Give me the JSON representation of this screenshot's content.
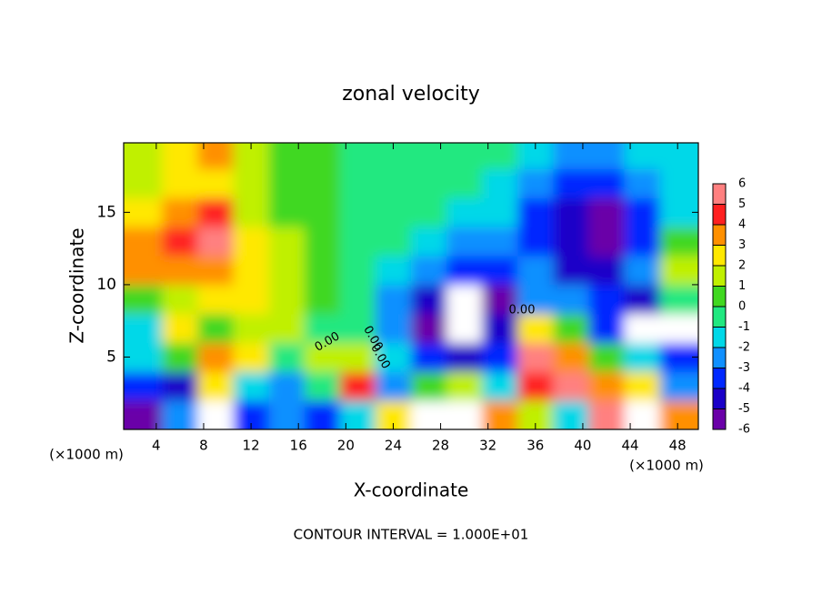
{
  "chart_data": {
    "type": "contour",
    "title": "zonal velocity",
    "x_label": "X-coordinate",
    "y_label": "Z-coordinate",
    "x_unit": "(×1000 m)",
    "y_unit": "(×1000 m)",
    "footnote": "CONTOUR INTERVAL = 1.000E+01",
    "annotations": [
      "0.00",
      "0.00",
      "0.00",
      "0.00"
    ],
    "xlim": [
      1.25,
      49.75
    ],
    "ylim": [
      0,
      19.8
    ],
    "xticks": [
      4,
      8,
      12,
      16,
      20,
      24,
      28,
      32,
      36,
      40,
      44,
      48
    ],
    "yticks": [
      5,
      10,
      15
    ],
    "x": [
      3,
      6,
      9,
      12,
      15,
      18,
      21,
      24,
      27,
      30,
      33,
      36,
      39,
      42,
      45,
      48
    ],
    "y": [
      1,
      3,
      5,
      7,
      9,
      11,
      13,
      15,
      17,
      19
    ],
    "z": [
      [
        -5,
        -2,
        -6.5,
        -3,
        -2,
        -3,
        -1,
        3,
        6.5,
        6.5,
        4,
        2,
        -1,
        6,
        6.5,
        4
      ],
      [
        -3,
        -4,
        3,
        -1,
        -2,
        0,
        5,
        -2,
        1,
        2,
        -1,
        5,
        6,
        4,
        3,
        -2
      ],
      [
        -1,
        1,
        4,
        3,
        0,
        2,
        2,
        -1,
        -3,
        -4,
        -3,
        6,
        4,
        1,
        -1,
        -3
      ],
      [
        -1,
        3,
        1,
        2,
        2,
        0,
        0,
        -2,
        -5,
        -6.5,
        -4,
        3,
        1,
        -3,
        -6.5,
        -6.5
      ],
      [
        1,
        2,
        3,
        3,
        2,
        0.5,
        -0.5,
        -2,
        -4,
        -6.5,
        -5,
        -2,
        -2,
        -3,
        -4,
        0
      ],
      [
        4,
        4,
        4,
        3,
        1.5,
        0.5,
        -0.5,
        -1,
        -2,
        -3,
        -3,
        -2,
        -4,
        -4,
        -2,
        2
      ],
      [
        4,
        4.5,
        5.5,
        3,
        1.5,
        0.5,
        0,
        -0.5,
        -1,
        -2,
        -2,
        -3,
        -4,
        -5.5,
        -3,
        1
      ],
      [
        3,
        4,
        5,
        2,
        1,
        0.5,
        0,
        0,
        -0.5,
        -1,
        -1.5,
        -3,
        -4,
        -5,
        -3,
        -1
      ],
      [
        2,
        3,
        2.5,
        2,
        1,
        0.5,
        0,
        0,
        0,
        -0.5,
        -1,
        -2,
        -3,
        -3,
        -2,
        -1
      ],
      [
        2,
        3,
        3.5,
        2,
        1,
        0.5,
        0,
        0,
        0,
        -0.3,
        -0.5,
        -1.5,
        -2,
        -2,
        -1.5,
        -1
      ]
    ],
    "levels": [
      -6,
      -5,
      -4,
      -3,
      -2,
      -1,
      0,
      1,
      2,
      3,
      4,
      5,
      6
    ],
    "colors": [
      "#6a00a8",
      "#1a00c8",
      "#0028ff",
      "#1090ff",
      "#00d8e8",
      "#20e880",
      "#40d820",
      "#c0f000",
      "#ffe800",
      "#ff9000",
      "#ff2020",
      "#ff8080"
    ],
    "out_of_range_color": "#ffffff"
  }
}
